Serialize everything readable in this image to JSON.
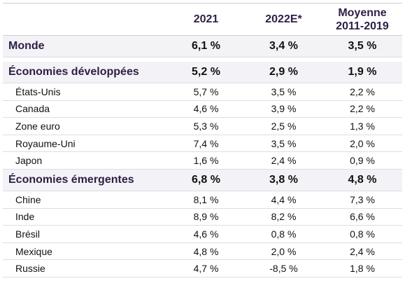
{
  "table": {
    "headers": {
      "col1": "",
      "col2": "2021",
      "col3": "2022E*",
      "col4_line1": "Moyenne",
      "col4_line2": "2011-2019"
    },
    "rows": [
      {
        "label": "Monde",
        "v2021": "6,1 %",
        "v2022": "3,4 %",
        "avg": "3,5 %"
      },
      {
        "label": "Économies développées",
        "v2021": "5,2 %",
        "v2022": "2,9 %",
        "avg": "1,9 %"
      },
      {
        "label": "États-Unis",
        "v2021": "5,7 %",
        "v2022": "3,5 %",
        "avg": "2,2 %"
      },
      {
        "label": "Canada",
        "v2021": "4,6 %",
        "v2022": "3,9 %",
        "avg": "2,2 %"
      },
      {
        "label": "Zone euro",
        "v2021": "5,3 %",
        "v2022": "2,5 %",
        "avg": "1,3 %"
      },
      {
        "label": "Royaume-Uni",
        "v2021": "7,4 %",
        "v2022": "3,5 %",
        "avg": "2,0 %"
      },
      {
        "label": "Japon",
        "v2021": "1,6 %",
        "v2022": "2,4 %",
        "avg": "0,9 %"
      },
      {
        "label": "Économies émergentes",
        "v2021": "6,8 %",
        "v2022": "3,8 %",
        "avg": "4,8 %"
      },
      {
        "label": "Chine",
        "v2021": "8,1 %",
        "v2022": "4,4 %",
        "avg": "7,3 %"
      },
      {
        "label": "Inde",
        "v2021": "8,9 %",
        "v2022": "8,2 %",
        "avg": "6,6 %"
      },
      {
        "label": "Brésil",
        "v2021": "4,6 %",
        "v2022": "0,8 %",
        "avg": "0,8 %"
      },
      {
        "label": "Mexique",
        "v2021": "4,8 %",
        "v2022": "2,0 %",
        "avg": "2,4 %"
      },
      {
        "label": "Russie",
        "v2021": "4,7 %",
        "v2022": "-8,5 %",
        "avg": "1,8 %"
      }
    ]
  },
  "colors": {
    "heading_text": "#2e1f45",
    "group_row_bg": "#f3f2f6",
    "rule": "#dedee2"
  }
}
